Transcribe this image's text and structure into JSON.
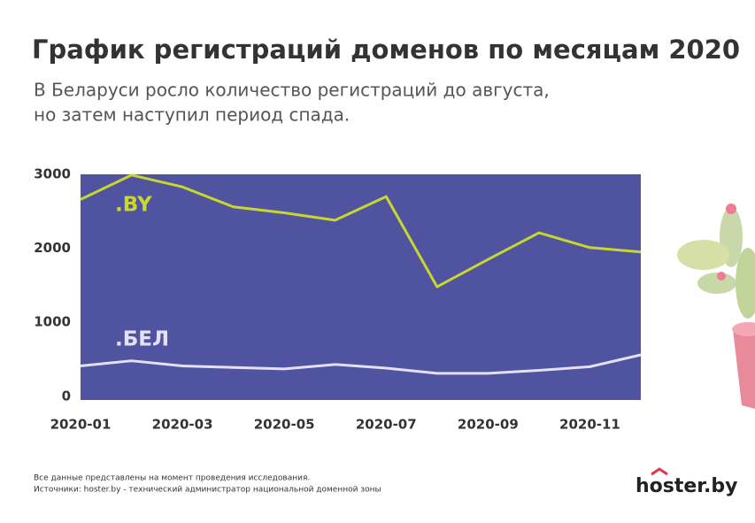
{
  "chart_data": {
    "type": "line",
    "title": "График регистраций доменов по месяцам 2020",
    "subtitle": [
      "В Беларуси росло количество регистраций до августа,",
      "но затем наступил период спада."
    ],
    "categories": [
      "2020-01",
      null,
      "2020-03",
      null,
      "2020-05",
      null,
      "2020-07",
      null,
      "2020-09",
      null,
      "2020-11",
      null
    ],
    "series": [
      {
        "name": ".BY",
        "color": "#c8d62e",
        "values": [
          2660,
          2990,
          2830,
          2560,
          2480,
          2380,
          2700,
          1480,
          1850,
          2210,
          2010,
          1950
        ]
      },
      {
        "name": ".БЕЛ",
        "color": "#e4e0f7",
        "values": [
          410,
          480,
          410,
          390,
          370,
          430,
          380,
          310,
          310,
          350,
          400,
          560
        ]
      }
    ],
    "ylim": [
      -50,
      3000
    ],
    "yticks": [
      0,
      1000,
      2000,
      3000
    ],
    "grid": false,
    "background": "#5053a0",
    "footnotes": [
      "Все данные представлены на момент проведения исследования.",
      "Источники: hoster.by - технический администратор национальной доменной зоны"
    ],
    "logo": "hoster.by"
  }
}
